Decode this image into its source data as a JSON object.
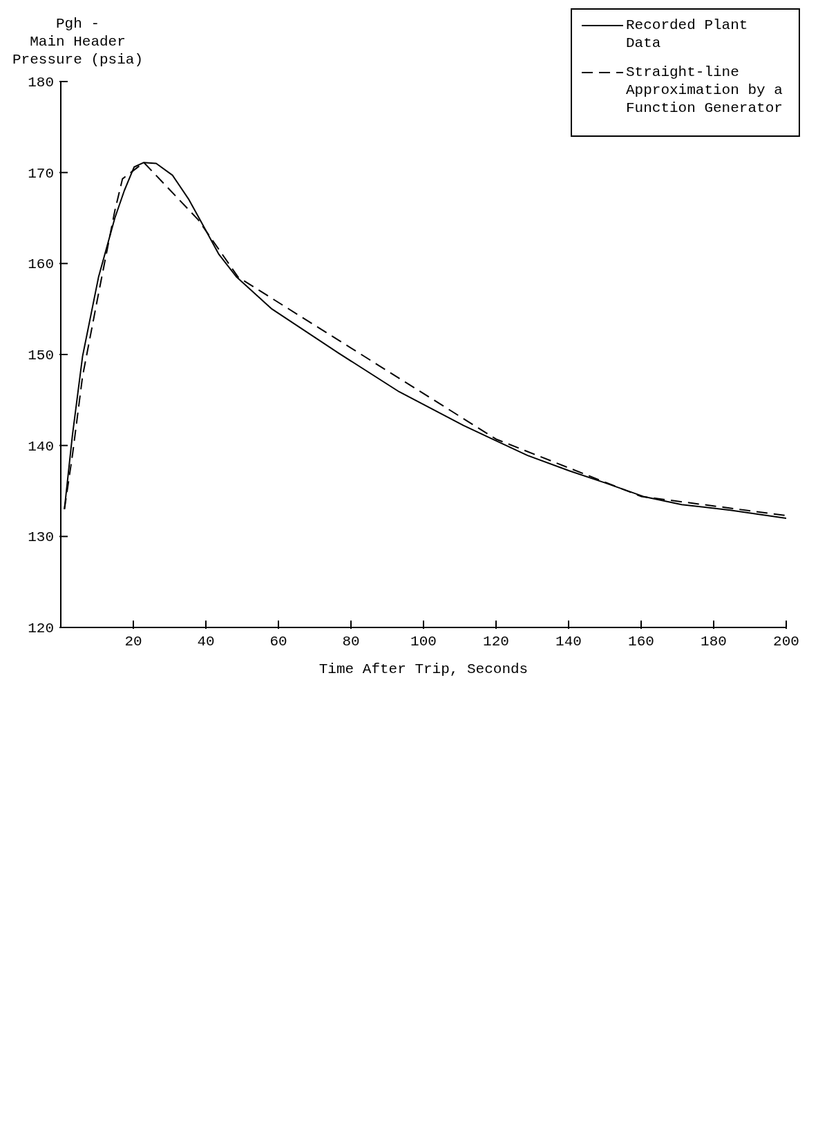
{
  "chart_data": {
    "type": "line",
    "xlabel": "Time After Trip, Seconds",
    "ylabel": "Pgh -\nMain Header\nPressure (psia)",
    "xlim": [
      0,
      200
    ],
    "xticks": [
      20,
      40,
      60,
      80,
      100,
      120,
      140,
      160,
      180,
      200
    ],
    "ylim": [
      120,
      180
    ],
    "yticks": [
      120,
      130,
      140,
      150,
      160,
      170,
      180
    ],
    "grid": false,
    "legend": "top right",
    "marker": "none",
    "series": [
      {
        "name": "Recorded Plant Data",
        "color": "#000000",
        "line_style": "solid",
        "x": [
          1,
          3.2,
          6,
          10.4,
          14.9,
          17.5,
          20.2,
          22.9,
          26.3,
          30.8,
          35.2,
          38.8,
          43.6,
          48.5,
          58.2,
          76.4,
          93.3,
          111,
          119,
          128.7,
          140.3,
          150,
          160.6,
          171.2,
          184.5,
          200
        ],
        "values": [
          133,
          141.1,
          149.8,
          158.5,
          165,
          168,
          170.6,
          171.1,
          171,
          169.7,
          167.1,
          164.5,
          161,
          158.5,
          155,
          150.2,
          145.9,
          142.2,
          140.7,
          138.9,
          137.2,
          135.9,
          134.4,
          133.5,
          132.9,
          132
        ]
      },
      {
        "name": "Straight-line Approximation by a Function Generator",
        "color": "#000000",
        "line_style": "dashed",
        "x": [
          1,
          3.2,
          6,
          10.4,
          14.9,
          17,
          22.9,
          37.9,
          48.9,
          120,
          160,
          200
        ],
        "values": [
          133,
          138.9,
          147.6,
          156.7,
          165.8,
          169.3,
          171.1,
          164.8,
          158.5,
          140.7,
          134.4,
          132.3
        ]
      }
    ]
  }
}
